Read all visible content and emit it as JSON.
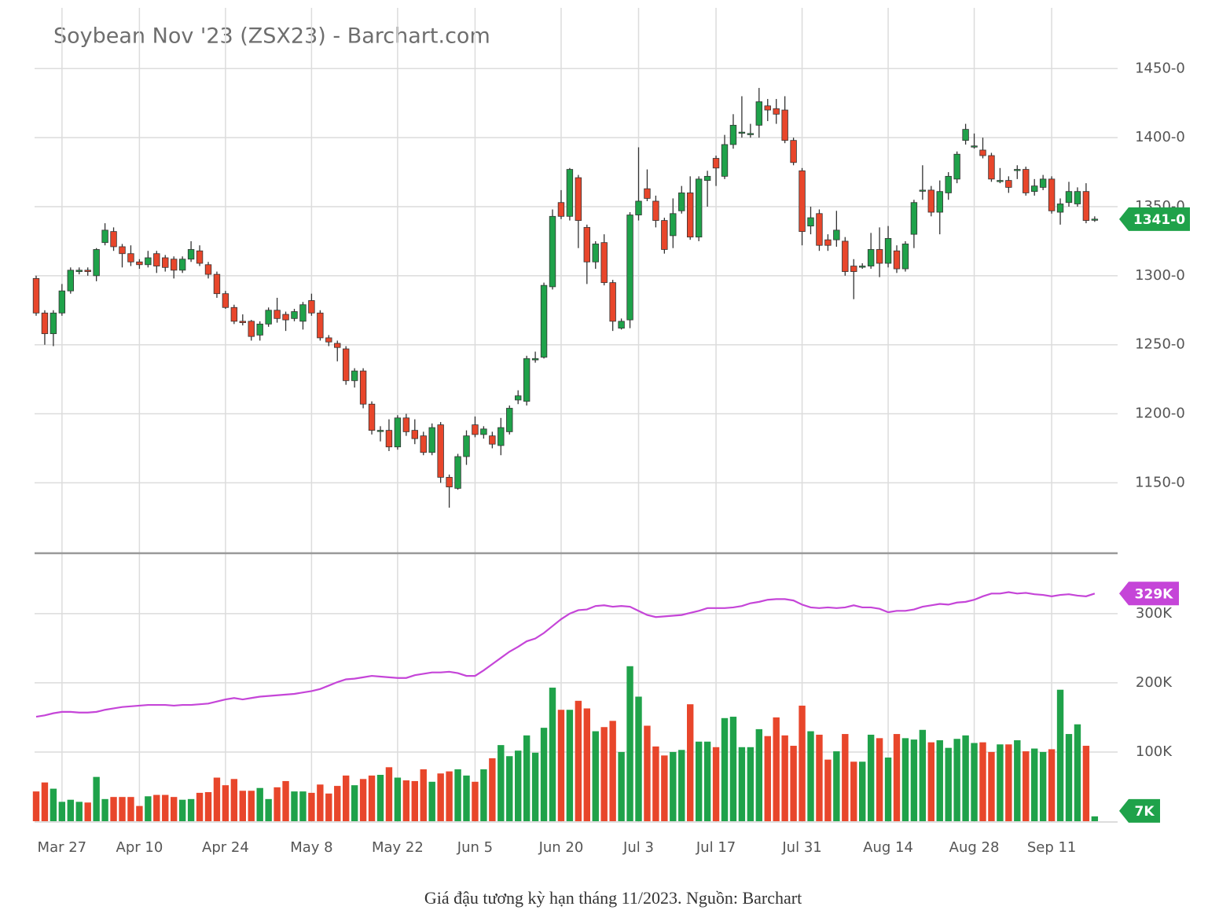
{
  "chart_data": [
    {
      "type": "candlestick",
      "title": "Soybean Nov '23 (ZSX23) - Barchart.com",
      "categories": [
        null,
        null,
        null,
        "Mar 27",
        null,
        null,
        null,
        null,
        null,
        null,
        null,
        null,
        "Apr 10",
        null,
        null,
        null,
        null,
        null,
        null,
        null,
        null,
        null,
        "Apr 24",
        null,
        null,
        null,
        null,
        null,
        null,
        null,
        null,
        null,
        "May 8",
        null,
        null,
        null,
        null,
        null,
        null,
        null,
        null,
        null,
        "May 22",
        null,
        null,
        null,
        null,
        null,
        null,
        null,
        null,
        "Jun 5",
        null,
        null,
        null,
        null,
        null,
        null,
        null,
        null,
        null,
        "Jun 20",
        null,
        null,
        null,
        null,
        null,
        null,
        null,
        null,
        "Jul 3",
        null,
        null,
        null,
        null,
        null,
        null,
        null,
        null,
        "Jul 17",
        null,
        null,
        null,
        null,
        null,
        null,
        null,
        null,
        null,
        "Jul 31",
        null,
        null,
        null,
        null,
        null,
        null,
        null,
        null,
        null,
        "Aug 14",
        null,
        null,
        null,
        null,
        null,
        null,
        null,
        null,
        null,
        "Aug 28",
        null,
        null,
        null,
        null,
        null,
        null,
        null,
        null,
        "Sep 11",
        null,
        null,
        null,
        null,
        null
      ],
      "open": [
        1298,
        1273,
        1258,
        1273,
        1289,
        1303,
        1304,
        1300,
        1324,
        1332,
        1321,
        1316,
        1310,
        1308,
        1316,
        1313,
        1312,
        1304,
        1312,
        1318,
        1308,
        1301,
        1287,
        1277,
        1267,
        1267,
        1257,
        1265,
        1275,
        1272,
        1269,
        1267,
        1282,
        1273,
        1255,
        1251,
        1247,
        1224,
        1231,
        1207,
        1188,
        1188,
        1176,
        1197,
        1188,
        1184,
        1172,
        1192,
        1154,
        1146,
        1169,
        1192,
        1185,
        1184,
        1177,
        1187,
        1210,
        1209,
        1239,
        1241,
        1292,
        1353,
        1343,
        1371,
        1335,
        1310,
        1324,
        1295,
        1262,
        1268,
        1344,
        1363,
        1354,
        1340,
        1329,
        1347,
        1360,
        1328,
        1369,
        1385,
        1372,
        1395,
        1404,
        1403,
        1409,
        1423,
        1421,
        1420,
        1398,
        1376,
        1336,
        1345,
        1326,
        1326,
        1325,
        1307,
        1307,
        1307,
        1319,
        1309,
        1318,
        1305,
        1330,
        1362,
        1362,
        1346,
        1360,
        1370,
        1398,
        1394,
        1391,
        1387,
        1369,
        1369,
        1377,
        1377,
        1361,
        1364,
        1370,
        1346,
        1353,
        1352,
        1361,
        1341
      ],
      "high": [
        1300,
        1275,
        1275,
        1294,
        1306,
        1306,
        1306,
        1320,
        1338,
        1335,
        1323,
        1322,
        1312,
        1318,
        1318,
        1315,
        1314,
        1314,
        1325,
        1322,
        1310,
        1303,
        1289,
        1279,
        1272,
        1268,
        1267,
        1277,
        1284,
        1274,
        1276,
        1281,
        1287,
        1275,
        1257,
        1253,
        1249,
        1233,
        1233,
        1209,
        1191,
        1196,
        1199,
        1200,
        1196,
        1187,
        1193,
        1194,
        1156,
        1171,
        1188,
        1198,
        1191,
        1187,
        1197,
        1206,
        1217,
        1242,
        1245,
        1295,
        1348,
        1362,
        1378,
        1373,
        1337,
        1325,
        1330,
        1297,
        1269,
        1346,
        1393,
        1377,
        1358,
        1342,
        1356,
        1365,
        1372,
        1372,
        1376,
        1387,
        1402,
        1417,
        1430,
        1410,
        1436,
        1428,
        1428,
        1430,
        1400,
        1378,
        1350,
        1348,
        1330,
        1347,
        1328,
        1312,
        1309,
        1331,
        1335,
        1336,
        1322,
        1325,
        1355,
        1380,
        1365,
        1369,
        1375,
        1390,
        1410,
        1403,
        1400,
        1389,
        1378,
        1372,
        1380,
        1379,
        1370,
        1373,
        1372,
        1356,
        1368,
        1364,
        1367,
        1343
      ],
      "low": [
        1271,
        1250,
        1249,
        1271,
        1287,
        1301,
        1300,
        1296,
        1322,
        1318,
        1306,
        1307,
        1305,
        1306,
        1302,
        1303,
        1298,
        1302,
        1310,
        1307,
        1298,
        1284,
        1276,
        1265,
        1264,
        1253,
        1253,
        1263,
        1266,
        1260,
        1267,
        1261,
        1271,
        1253,
        1249,
        1238,
        1221,
        1219,
        1204,
        1185,
        1180,
        1173,
        1174,
        1184,
        1178,
        1170,
        1170,
        1150,
        1132,
        1145,
        1163,
        1183,
        1182,
        1175,
        1170,
        1185,
        1207,
        1206,
        1237,
        1240,
        1290,
        1341,
        1340,
        1320,
        1294,
        1305,
        1293,
        1260,
        1261,
        1262,
        1340,
        1354,
        1335,
        1316,
        1320,
        1345,
        1326,
        1325,
        1350,
        1365,
        1370,
        1392,
        1400,
        1400,
        1400,
        1412,
        1410,
        1396,
        1380,
        1322,
        1330,
        1318,
        1318,
        1321,
        1300,
        1283,
        1305,
        1305,
        1299,
        1306,
        1302,
        1303,
        1320,
        1355,
        1343,
        1330,
        1355,
        1367,
        1395,
        1392,
        1385,
        1368,
        1367,
        1360,
        1370,
        1358,
        1358,
        1362,
        1345,
        1337,
        1350,
        1350,
        1338,
        1339
      ],
      "close": [
        1273,
        1258,
        1273,
        1289,
        1304,
        1304,
        1303,
        1319,
        1333,
        1321,
        1316,
        1310,
        1308,
        1313,
        1307,
        1306,
        1304,
        1312,
        1319,
        1309,
        1301,
        1287,
        1277,
        1267,
        1266,
        1256,
        1265,
        1275,
        1269,
        1268,
        1274,
        1279,
        1273,
        1255,
        1252,
        1248,
        1224,
        1231,
        1207,
        1188,
        1188,
        1176,
        1197,
        1187,
        1182,
        1172,
        1190,
        1154,
        1147,
        1169,
        1184,
        1185,
        1189,
        1178,
        1190,
        1204,
        1213,
        1240,
        1240,
        1293,
        1343,
        1343,
        1377,
        1340,
        1310,
        1323,
        1295,
        1267,
        1267,
        1344,
        1354,
        1356,
        1340,
        1319,
        1345,
        1360,
        1328,
        1370,
        1372,
        1378,
        1395,
        1409,
        1404,
        1403,
        1426,
        1420,
        1417,
        1398,
        1382,
        1332,
        1342,
        1322,
        1322,
        1333,
        1303,
        1303,
        1307,
        1319,
        1309,
        1327,
        1305,
        1323,
        1353,
        1362,
        1346,
        1361,
        1372,
        1388,
        1406,
        1394,
        1387,
        1370,
        1369,
        1364,
        1377,
        1360,
        1365,
        1370,
        1347,
        1352,
        1361,
        1361,
        1340,
        1341
      ],
      "ylim": [
        1099,
        1494
      ],
      "yticks": [
        {
          "value": 1150,
          "label": "1150-0"
        },
        {
          "value": 1200,
          "label": "1200-0"
        },
        {
          "value": 1250,
          "label": "1250-0"
        },
        {
          "value": 1300,
          "label": "1300-0"
        },
        {
          "value": 1350,
          "label": "1350-0"
        },
        {
          "value": 1400,
          "label": "1400-0"
        },
        {
          "value": 1450,
          "label": "1450-0"
        }
      ],
      "last_price": {
        "value": 1341,
        "label": "1341-0"
      },
      "up_color": "#1fa24a",
      "down_color": "#e8462b",
      "tag_color": "#1fa24a",
      "grid": true
    },
    {
      "type": "volume",
      "volume": [
        43000,
        56000,
        47000,
        28000,
        31000,
        28000,
        27000,
        64000,
        32000,
        35000,
        35000,
        35000,
        22000,
        36000,
        38000,
        38000,
        35000,
        31000,
        32000,
        41000,
        42000,
        63000,
        52000,
        61000,
        44000,
        44000,
        48000,
        32000,
        49000,
        58000,
        43000,
        43000,
        41000,
        53000,
        40000,
        51000,
        66000,
        52000,
        61000,
        66000,
        67000,
        78000,
        63000,
        59000,
        58000,
        75000,
        57000,
        69000,
        72000,
        75000,
        66000,
        57000,
        75000,
        91000,
        110000,
        94000,
        102000,
        124000,
        99000,
        135000,
        193000,
        161000,
        161000,
        174000,
        163000,
        130000,
        136000,
        145000,
        100000,
        224000,
        180000,
        138000,
        108000,
        95000,
        100000,
        103000,
        169000,
        115000,
        115000,
        107000,
        149000,
        151000,
        107000,
        107000,
        133000,
        123000,
        150000,
        124000,
        109000,
        167000,
        130000,
        125000,
        89000,
        101000,
        126000,
        86000,
        86000,
        125000,
        120000,
        92000,
        126000,
        120000,
        118000,
        132000,
        114000,
        117000,
        106000,
        119000,
        124000,
        113000,
        114000,
        100000,
        111000,
        111000,
        117000,
        101000,
        105000,
        100000,
        104000,
        190000,
        126000,
        140000,
        109000,
        7000
      ],
      "open_interest": [
        151000,
        153000,
        156000,
        158000,
        158000,
        157000,
        157000,
        158000,
        161000,
        163000,
        165000,
        166000,
        167000,
        168000,
        168000,
        168000,
        167000,
        168000,
        168000,
        169000,
        170000,
        173000,
        176000,
        178000,
        176000,
        178000,
        180000,
        181000,
        182000,
        183000,
        184000,
        186000,
        188000,
        191000,
        196000,
        201000,
        205000,
        206000,
        208000,
        210000,
        209000,
        208000,
        207000,
        207000,
        211000,
        213000,
        215000,
        215000,
        216000,
        214000,
        210000,
        210000,
        218000,
        227000,
        236000,
        245000,
        252000,
        260000,
        264000,
        272000,
        282000,
        292000,
        300000,
        305000,
        306000,
        311000,
        312000,
        310000,
        311000,
        310000,
        304000,
        298000,
        295000,
        296000,
        297000,
        298000,
        301000,
        304000,
        308000,
        308000,
        308000,
        309000,
        311000,
        315000,
        317000,
        320000,
        321000,
        321000,
        319000,
        313000,
        309000,
        308000,
        309000,
        308000,
        309000,
        312000,
        309000,
        309000,
        307000,
        302000,
        304000,
        304000,
        306000,
        310000,
        312000,
        314000,
        313000,
        316000,
        317000,
        320000,
        325000,
        329000,
        329000,
        331000,
        329000,
        330000,
        328000,
        327000,
        325000,
        327000,
        328000,
        326000,
        325000,
        329000
      ],
      "ylim": [
        0,
        385000
      ],
      "yticks": [
        {
          "value": 100000,
          "label": "100K"
        },
        {
          "value": 200000,
          "label": "200K"
        },
        {
          "value": 300000,
          "label": "300K"
        }
      ],
      "last_volume": {
        "value": 7000,
        "label": "7K"
      },
      "last_open_interest": {
        "value": 329000,
        "label": "329K"
      },
      "oi_color": "#c545d8",
      "volume_tag_color": "#1fa24a"
    }
  ],
  "caption": "Giá đậu tương kỳ hạn tháng 11/2023. Nguồn: Barchart"
}
